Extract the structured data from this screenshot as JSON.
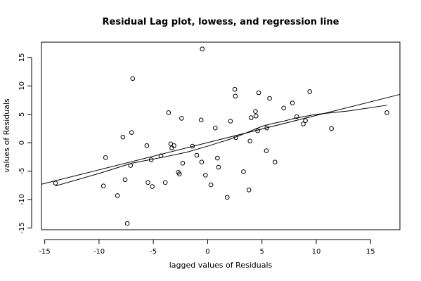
{
  "chart_data": {
    "type": "scatter",
    "title": "Residual Lag plot, lowess, and regression line",
    "xlabel": "lagged values of Residuals",
    "ylabel": "values of Residuals",
    "xlim": [
      -15.3,
      17.7
    ],
    "ylim": [
      -15.3,
      17.7
    ],
    "xticks": [
      -15,
      -10,
      -5,
      0,
      5,
      10,
      15
    ],
    "yticks": [
      -15,
      -10,
      -5,
      0,
      5,
      10,
      15
    ],
    "tick_labels_x": [
      "-15",
      "-10",
      "-5",
      "0",
      "5",
      "10",
      "15"
    ],
    "tick_labels_y": [
      "-15",
      "-10",
      "-5",
      "0",
      "5",
      "10",
      "15"
    ],
    "grid": false,
    "points": [
      {
        "x": -14.0,
        "y": -7.1
      },
      {
        "x": -9.6,
        "y": -7.6
      },
      {
        "x": -9.4,
        "y": -2.6
      },
      {
        "x": -8.3,
        "y": -9.3
      },
      {
        "x": -7.8,
        "y": 1.0
      },
      {
        "x": -7.6,
        "y": -6.5
      },
      {
        "x": -7.4,
        "y": -14.2
      },
      {
        "x": -7.1,
        "y": -4.0
      },
      {
        "x": -7.0,
        "y": 1.8
      },
      {
        "x": -6.9,
        "y": 11.3
      },
      {
        "x": -5.6,
        "y": -0.5
      },
      {
        "x": -5.5,
        "y": -7.0
      },
      {
        "x": -5.2,
        "y": -3.0
      },
      {
        "x": -5.1,
        "y": -7.7
      },
      {
        "x": -4.3,
        "y": -2.3
      },
      {
        "x": -3.9,
        "y": -7.0
      },
      {
        "x": -3.6,
        "y": 5.3
      },
      {
        "x": -3.4,
        "y": -0.2
      },
      {
        "x": -3.3,
        "y": -0.9
      },
      {
        "x": -3.1,
        "y": -0.5
      },
      {
        "x": -2.7,
        "y": -5.2
      },
      {
        "x": -2.6,
        "y": -5.5
      },
      {
        "x": -2.4,
        "y": 4.3
      },
      {
        "x": -2.3,
        "y": -3.6
      },
      {
        "x": -1.4,
        "y": -0.6
      },
      {
        "x": -1.0,
        "y": -2.2
      },
      {
        "x": -0.6,
        "y": 4.0
      },
      {
        "x": -0.55,
        "y": -3.4
      },
      {
        "x": -0.5,
        "y": 16.5
      },
      {
        "x": -0.2,
        "y": -5.7
      },
      {
        "x": 0.3,
        "y": -7.4
      },
      {
        "x": 0.7,
        "y": 2.6
      },
      {
        "x": 0.9,
        "y": -2.7
      },
      {
        "x": 1.0,
        "y": -4.3
      },
      {
        "x": 1.8,
        "y": -9.6
      },
      {
        "x": 2.1,
        "y": 3.8
      },
      {
        "x": 2.5,
        "y": 9.4
      },
      {
        "x": 2.55,
        "y": 8.2
      },
      {
        "x": 2.6,
        "y": 0.9
      },
      {
        "x": 3.3,
        "y": -5.1
      },
      {
        "x": 3.8,
        "y": -8.3
      },
      {
        "x": 3.9,
        "y": 0.3
      },
      {
        "x": 4.0,
        "y": 4.4
      },
      {
        "x": 4.4,
        "y": 5.5
      },
      {
        "x": 4.45,
        "y": 4.7
      },
      {
        "x": 4.6,
        "y": 2.1
      },
      {
        "x": 4.7,
        "y": 8.8
      },
      {
        "x": 5.4,
        "y": -1.4
      },
      {
        "x": 5.45,
        "y": 2.6
      },
      {
        "x": 5.7,
        "y": 7.8
      },
      {
        "x": 6.2,
        "y": -3.4
      },
      {
        "x": 7.0,
        "y": 6.1
      },
      {
        "x": 7.8,
        "y": 7.0
      },
      {
        "x": 8.2,
        "y": 4.6
      },
      {
        "x": 8.8,
        "y": 3.3
      },
      {
        "x": 9.0,
        "y": 3.9
      },
      {
        "x": 9.4,
        "y": 9.0
      },
      {
        "x": 11.4,
        "y": 2.5
      },
      {
        "x": 16.5,
        "y": 5.3
      }
    ],
    "regression_line": {
      "x": [
        -15.3,
        17.7
      ],
      "y": [
        -7.3,
        8.5
      ]
    },
    "lowess_line": {
      "x": [
        -14.0,
        -10.0,
        -7.0,
        -4.0,
        -2.0,
        0.0,
        1.0,
        2.0,
        3.0,
        4.0,
        5.0,
        6.0,
        7.0,
        8.0,
        10.0,
        13.0,
        16.5
      ],
      "y": [
        -7.6,
        -5.4,
        -3.6,
        -2.5,
        -1.7,
        -0.6,
        0.0,
        0.6,
        1.3,
        2.1,
        2.9,
        3.4,
        3.8,
        4.3,
        5.0,
        5.6,
        6.6
      ]
    }
  }
}
